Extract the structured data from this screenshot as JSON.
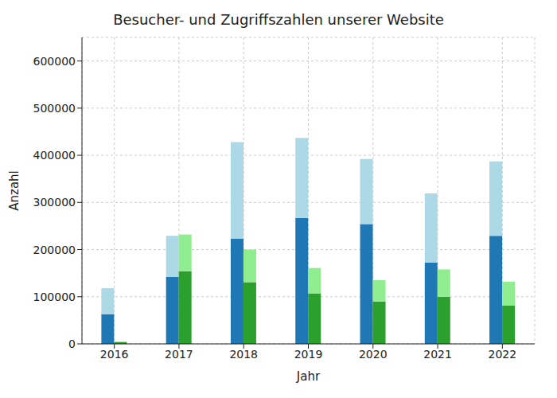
{
  "chart_data": {
    "type": "bar",
    "title": "Besucher- und Zugriffszahlen unserer Website",
    "x_label": "Jahr",
    "y_label": "Anzahl",
    "categories": [
      "2016",
      "2017",
      "2018",
      "2019",
      "2020",
      "2021",
      "2022"
    ],
    "stacked": true,
    "grid": true,
    "ylim": [
      0,
      650000
    ],
    "yticks": [
      0,
      100000,
      200000,
      300000,
      400000,
      500000,
      600000
    ],
    "series": [
      {
        "color": "#1f77b4",
        "values": [
          63000,
          142000,
          223000,
          267000,
          254000,
          172000,
          229000
        ]
      },
      {
        "color": "#add8e6",
        "values": [
          55000,
          87000,
          205000,
          170000,
          138000,
          147000,
          158000
        ]
      },
      {
        "color": "#2ca02c",
        "values": [
          4000,
          154000,
          131000,
          107000,
          90000,
          100000,
          81000
        ]
      },
      {
        "color": "#90ee90",
        "values": [
          1000,
          78000,
          69000,
          54000,
          45000,
          58000,
          51000
        ]
      }
    ]
  }
}
